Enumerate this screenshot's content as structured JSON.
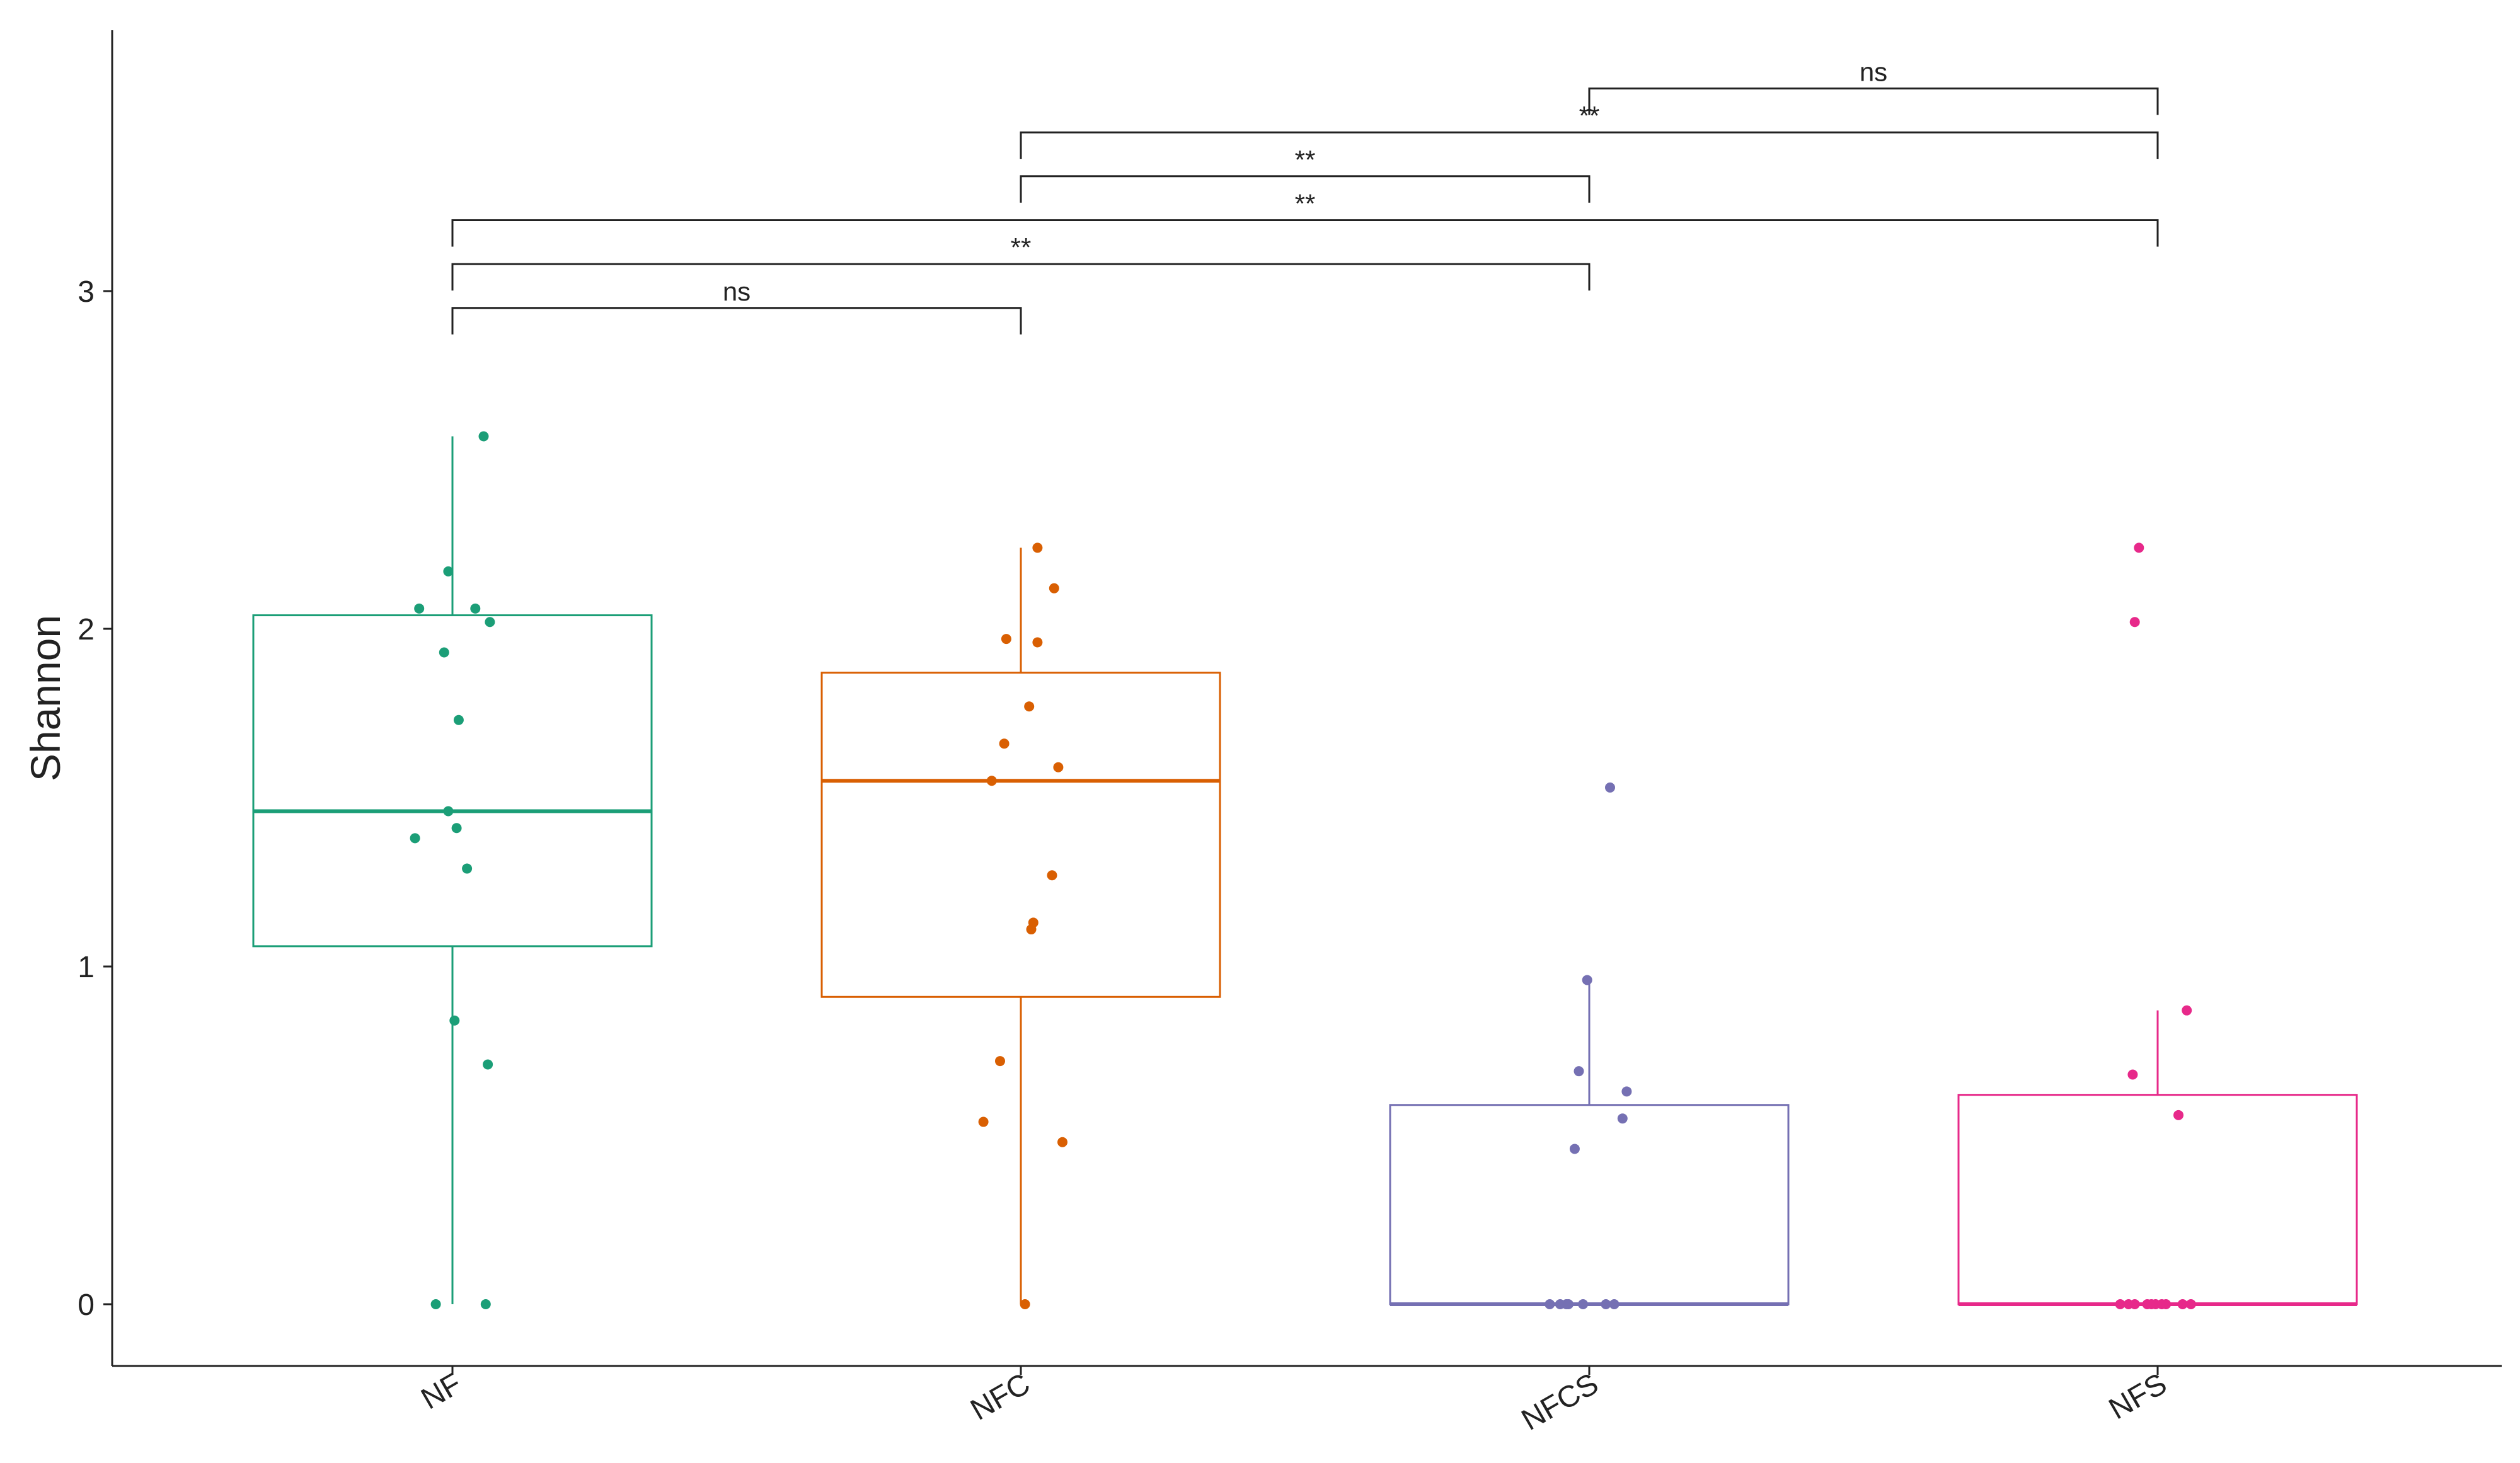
{
  "chart_data": {
    "type": "box",
    "title": "",
    "xlabel": "",
    "ylabel": "Shannon",
    "ylim": [
      -0.18,
      3.78
    ],
    "yticks": [
      0,
      1,
      2,
      3
    ],
    "grid": false,
    "legend": "none",
    "categories": [
      "NF",
      "NFC",
      "NFCS",
      "NFS"
    ],
    "colors": {
      "NF": "#1b9e77",
      "NFC": "#d95f02",
      "NFCS": "#7570b3",
      "NFS": "#e7298a"
    },
    "boxes": [
      {
        "group": "NF",
        "min": 0.0,
        "q1": 1.06,
        "median": 1.46,
        "q3": 2.04,
        "max": 2.57
      },
      {
        "group": "NFC",
        "min": 0.0,
        "q1": 0.91,
        "median": 1.55,
        "q3": 1.87,
        "max": 2.24
      },
      {
        "group": "NFCS",
        "min": 0.0,
        "q1": 0.0,
        "median": 0.0,
        "q3": 0.59,
        "max": 0.96
      },
      {
        "group": "NFS",
        "min": 0.0,
        "q1": 0.0,
        "median": 0.0,
        "q3": 0.62,
        "max": 0.87
      }
    ],
    "points": [
      {
        "group": "NF",
        "values": [
          2.57,
          2.17,
          2.06,
          2.06,
          2.02,
          1.93,
          1.73,
          1.46,
          1.41,
          1.38,
          1.29,
          0.84,
          0.71,
          0.0,
          0.0
        ],
        "jitter": [
          0.15,
          -0.02,
          -0.16,
          0.11,
          0.18,
          -0.04,
          0.03,
          -0.02,
          0.02,
          -0.18,
          0.07,
          0.01,
          0.17,
          -0.08,
          0.16
        ]
      },
      {
        "group": "NFC",
        "values": [
          2.24,
          2.12,
          1.97,
          1.96,
          1.77,
          1.66,
          1.59,
          1.55,
          1.27,
          1.13,
          1.11,
          0.72,
          0.54,
          0.48,
          0.0
        ],
        "jitter": [
          0.08,
          0.16,
          -0.07,
          0.08,
          0.04,
          -0.08,
          0.18,
          -0.14,
          0.15,
          0.06,
          0.05,
          -0.1,
          -0.18,
          0.2,
          0.02
        ]
      },
      {
        "group": "NFCS",
        "values": [
          1.53,
          0.96,
          0.69,
          0.63,
          0.55,
          0.46,
          0.0,
          0.0,
          0.0,
          0.0,
          0.0,
          0.0,
          0.0
        ],
        "jitter": [
          0.1,
          -0.01,
          -0.05,
          0.18,
          0.16,
          -0.07,
          -0.19,
          -0.14,
          -0.11,
          -0.03,
          0.08,
          0.12,
          -0.1
        ]
      },
      {
        "group": "NFS",
        "values": [
          2.24,
          2.02,
          0.87,
          0.68,
          0.56,
          0.0,
          0.0,
          0.0,
          0.0,
          0.0,
          0.0,
          0.0,
          0.0,
          0.0,
          0.0
        ],
        "jitter": [
          -0.09,
          -0.11,
          0.14,
          -0.12,
          0.1,
          -0.18,
          -0.14,
          -0.11,
          -0.05,
          -0.03,
          -0.01,
          0.02,
          0.04,
          0.12,
          0.16
        ]
      }
    ],
    "comparisons": [
      {
        "from": "NF",
        "to": "NFC",
        "y": 2.95,
        "label": "ns"
      },
      {
        "from": "NF",
        "to": "NFCS",
        "y": 3.08,
        "label": "**"
      },
      {
        "from": "NF",
        "to": "NFS",
        "y": 3.21,
        "label": "**"
      },
      {
        "from": "NFC",
        "to": "NFCS",
        "y": 3.34,
        "label": "**"
      },
      {
        "from": "NFC",
        "to": "NFS",
        "y": 3.47,
        "label": "**"
      },
      {
        "from": "NFCS",
        "to": "NFS",
        "y": 3.6,
        "label": "ns"
      }
    ]
  }
}
